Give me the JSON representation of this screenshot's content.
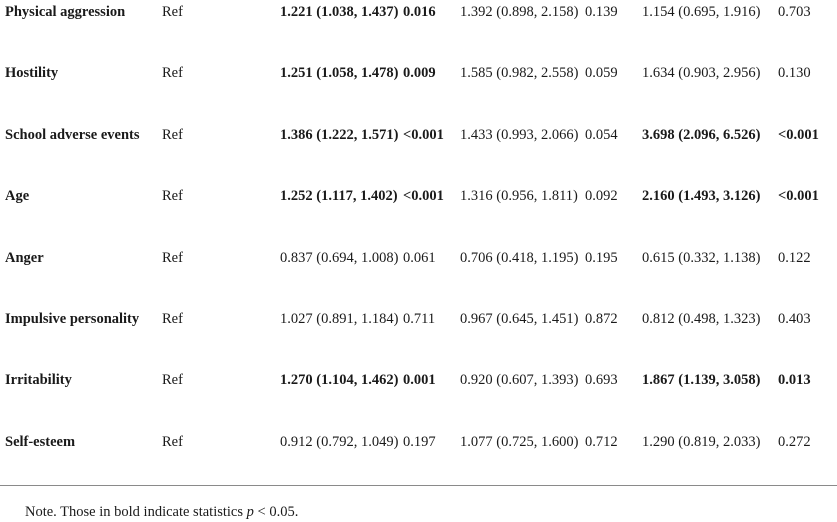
{
  "rows": [
    {
      "var": "Physical aggression",
      "ref": "Ref",
      "or1": "1.221 (1.038, 1.437)",
      "p1": "0.016",
      "or2": "1.392 (0.898, 2.158)",
      "p2": "0.139",
      "or3": "1.154 (0.695, 1.916)",
      "p3": "0.703"
    },
    {
      "var": "Hostility",
      "ref": "Ref",
      "or1": "1.251 (1.058, 1.478)",
      "p1": "0.009",
      "or2": "1.585 (0.982, 2.558)",
      "p2": "0.059",
      "or3": "1.634 (0.903, 2.956)",
      "p3": "0.130"
    },
    {
      "var": "School adverse events",
      "ref": "Ref",
      "or1": "1.386 (1.222, 1.571)",
      "p1": "<0.001",
      "or2": "1.433 (0.993, 2.066)",
      "p2": "0.054",
      "or3": "3.698 (2.096, 6.526)",
      "p3": "<0.001"
    },
    {
      "var": "Age",
      "ref": "Ref",
      "or1": "1.252 (1.117, 1.402)",
      "p1": "<0.001",
      "or2": "1.316 (0.956, 1.811)",
      "p2": "0.092",
      "or3": "2.160 (1.493, 3.126)",
      "p3": "<0.001"
    },
    {
      "var": "Anger",
      "ref": "Ref",
      "or1": "0.837 (0.694, 1.008)",
      "p1": "0.061",
      "or2": "0.706 (0.418, 1.195)",
      "p2": "0.195",
      "or3": "0.615 (0.332, 1.138)",
      "p3": "0.122"
    },
    {
      "var": "Impulsive personality",
      "ref": "Ref",
      "or1": "1.027 (0.891, 1.184)",
      "p1": "0.711",
      "or2": "0.967 (0.645, 1.451)",
      "p2": "0.872",
      "or3": "0.812 (0.498, 1.323)",
      "p3": "0.403"
    },
    {
      "var": "Irritability",
      "ref": "Ref",
      "or1": "1.270 (1.104, 1.462)",
      "p1": "0.001",
      "or2": "0.920 (0.607, 1.393)",
      "p2": "0.693",
      "or3": "1.867 (1.139, 3.058)",
      "p3": "0.013"
    },
    {
      "var": "Self-esteem",
      "ref": "Ref",
      "or1": "0.912 (0.792, 1.049)",
      "p1": "0.197",
      "or2": "1.077 (0.725, 1.600)",
      "p2": "0.712",
      "or3": "1.290 (0.819, 2.033)",
      "p3": "0.272"
    }
  ],
  "note": {
    "prefix": "Note. Those in bold indicate statistics ",
    "symbol": "p",
    "suffix": " < 0.05."
  }
}
